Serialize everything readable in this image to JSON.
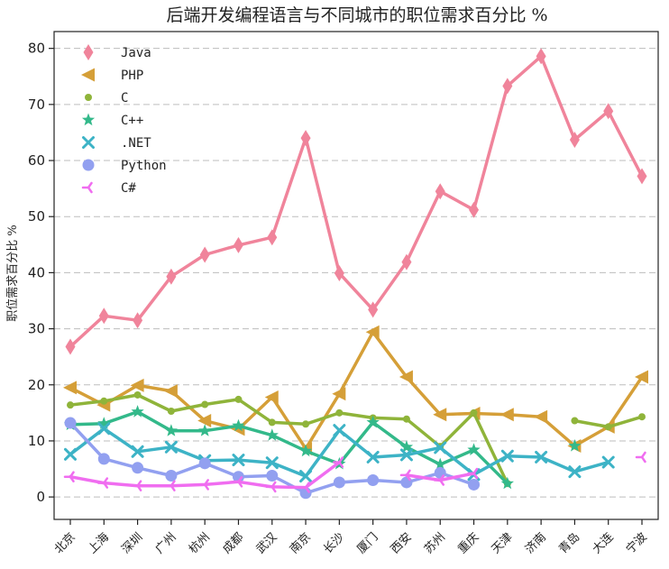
{
  "chart_data": {
    "type": "line",
    "title": "后端开发编程语言与不同城市的职位需求百分比 %",
    "xlabel": "",
    "ylabel": "职位需求百分比 %",
    "ylim": [
      -4,
      83
    ],
    "yticks": [
      0,
      10,
      20,
      30,
      40,
      50,
      60,
      70,
      80
    ],
    "grid": "horizontal-dashed",
    "legend_position": "top-left",
    "categories": [
      "北京",
      "上海",
      "深圳",
      "广州",
      "杭州",
      "成都",
      "武汉",
      "南京",
      "长沙",
      "厦门",
      "西安",
      "苏州",
      "重庆",
      "天津",
      "济南",
      "青岛",
      "大连",
      "宁波"
    ],
    "series": [
      {
        "name": "Java",
        "color": "#f0849b",
        "marker": "diamond",
        "values": [
          26.8,
          32.3,
          31.5,
          39.3,
          43.2,
          44.9,
          46.3,
          64.0,
          39.9,
          33.4,
          41.9,
          54.5,
          51.2,
          73.3,
          78.6,
          63.7,
          68.8,
          57.2
        ]
      },
      {
        "name": "PHP",
        "color": "#d59f38",
        "marker": "triangle-left",
        "values": [
          19.5,
          16.4,
          19.9,
          18.9,
          13.6,
          12.1,
          17.8,
          8.6,
          18.4,
          29.4,
          21.4,
          14.7,
          14.9,
          14.7,
          14.3,
          9.1,
          12.5,
          21.4
        ]
      },
      {
        "name": "C",
        "color": "#8fb43a",
        "marker": "circle",
        "values": [
          16.4,
          17.1,
          18.2,
          15.3,
          16.5,
          17.4,
          13.3,
          13.0,
          15.0,
          14.1,
          13.9,
          9.0,
          15.0,
          2.4,
          null,
          13.6,
          12.5,
          14.3
        ]
      },
      {
        "name": "C++",
        "color": "#33b98a",
        "marker": "star",
        "values": [
          12.9,
          13.1,
          15.2,
          11.8,
          11.8,
          12.7,
          11.0,
          8.2,
          5.9,
          13.3,
          8.9,
          5.8,
          8.4,
          2.4,
          null,
          9.1,
          null,
          null
        ]
      },
      {
        "name": ".NET",
        "color": "#3db3c6",
        "marker": "x",
        "values": [
          7.6,
          12.2,
          8.1,
          8.9,
          6.5,
          6.6,
          6.1,
          3.7,
          11.9,
          7.1,
          7.5,
          8.8,
          4.0,
          7.3,
          7.1,
          4.5,
          6.2,
          null
        ]
      },
      {
        "name": "Python",
        "color": "#92a0f0",
        "marker": "big-circle",
        "values": [
          13.2,
          6.8,
          5.2,
          3.8,
          6.0,
          3.6,
          3.8,
          0.7,
          2.6,
          3.0,
          2.6,
          4.3,
          2.2,
          null,
          null,
          null,
          null,
          null
        ]
      },
      {
        "name": "C#",
        "color": "#f06df0",
        "marker": "tri-left",
        "values": [
          3.6,
          2.5,
          2.0,
          2.0,
          2.2,
          2.7,
          1.8,
          1.7,
          6.2,
          null,
          3.9,
          3.0,
          4.2,
          null,
          null,
          null,
          null,
          7.1
        ]
      }
    ]
  }
}
